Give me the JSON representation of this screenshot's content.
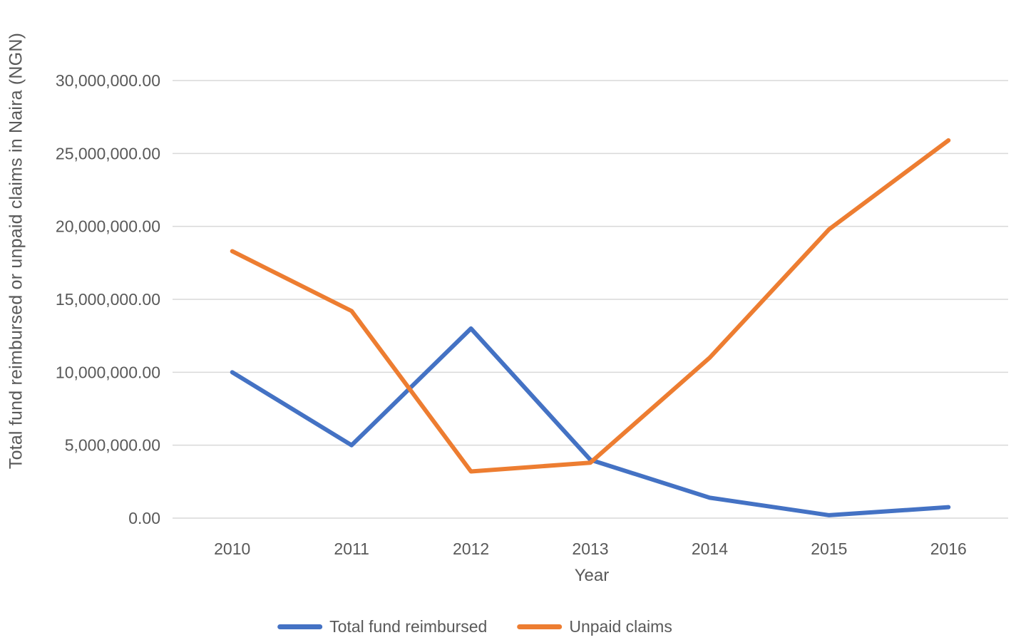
{
  "chart_data": {
    "type": "line",
    "title": "",
    "xlabel": "Year",
    "ylabel": "Total fund reimbursed or unpaid claims in Naira (NGN)",
    "categories": [
      "2010",
      "2011",
      "2012",
      "2013",
      "2014",
      "2015",
      "2016"
    ],
    "series": [
      {
        "name": "Total fund reimbursed",
        "color": "#4472C4",
        "values": [
          10000000,
          5000000,
          13000000,
          4000000,
          1400000,
          200000,
          750000
        ]
      },
      {
        "name": "Unpaid claims",
        "color": "#ED7D31",
        "values": [
          18300000,
          14200000,
          3200000,
          3800000,
          11000000,
          19800000,
          25900000
        ]
      }
    ],
    "ylim": [
      0,
      30000000
    ],
    "ytick_step": 5000000,
    "ytick_labels": [
      "0.00",
      "5,000,000.00",
      "10,000,000.00",
      "15,000,000.00",
      "20,000,000.00",
      "25,000,000.00",
      "30,000,000.00"
    ],
    "grid": true,
    "legend_position": "bottom"
  },
  "style": {
    "text_color": "#595959",
    "gridline_color": "#D9D9D9",
    "background": "#FFFFFF",
    "line_width": 6
  }
}
